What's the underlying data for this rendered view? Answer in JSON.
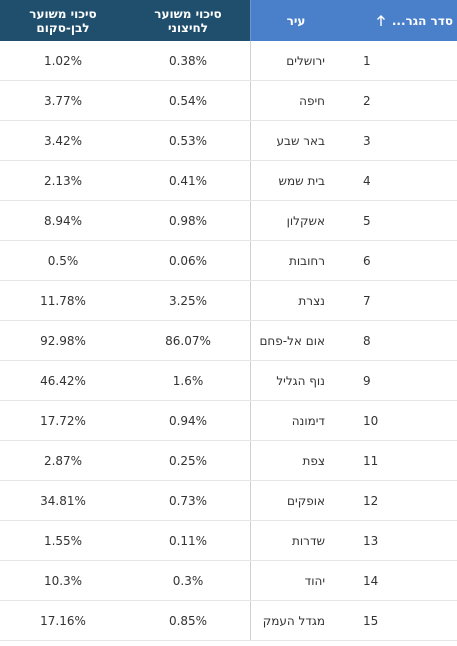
{
  "headers": {
    "rank": "סדר הגר...",
    "city": "עיר",
    "risk_hiloni": "סיכוי משוער\nלחיצוני",
    "risk_bnei_brak": "סיכוי משוער\nלבן-סקום"
  },
  "sort_icon": "arrow-up-icon",
  "rows": [
    {
      "rank": "1",
      "city": "ירושלים",
      "risk1": "0.38%",
      "risk2": "1.02%"
    },
    {
      "rank": "2",
      "city": "חיפה",
      "risk1": "0.54%",
      "risk2": "3.77%"
    },
    {
      "rank": "3",
      "city": "באר שבע",
      "risk1": "0.53%",
      "risk2": "3.42%"
    },
    {
      "rank": "4",
      "city": "בית שמש",
      "risk1": "0.41%",
      "risk2": "2.13%"
    },
    {
      "rank": "5",
      "city": "אשקלון",
      "risk1": "0.98%",
      "risk2": "8.94%"
    },
    {
      "rank": "6",
      "city": "רחובות",
      "risk1": "0.06%",
      "risk2": "0.5%"
    },
    {
      "rank": "7",
      "city": "נצרת",
      "risk1": "3.25%",
      "risk2": "11.78%"
    },
    {
      "rank": "8",
      "city": "אום אל-פחם",
      "risk1": "86.07%",
      "risk2": "92.98%"
    },
    {
      "rank": "9",
      "city": "נוף הגליל",
      "risk1": "1.6%",
      "risk2": "46.42%"
    },
    {
      "rank": "10",
      "city": "דימונה",
      "risk1": "0.94%",
      "risk2": "17.72%"
    },
    {
      "rank": "11",
      "city": "צפת",
      "risk1": "0.25%",
      "risk2": "2.87%"
    },
    {
      "rank": "12",
      "city": "אופקים",
      "risk1": "0.73%",
      "risk2": "34.81%"
    },
    {
      "rank": "13",
      "city": "שדרות",
      "risk1": "0.11%",
      "risk2": "1.55%"
    },
    {
      "rank": "14",
      "city": "יהוד",
      "risk1": "0.3%",
      "risk2": "10.3%"
    },
    {
      "rank": "15",
      "city": "מגדל העמק",
      "risk1": "0.85%",
      "risk2": "17.16%"
    }
  ],
  "colors": {
    "header_light": "#4a7fc9",
    "header_dark": "#1f4f6c",
    "row_border": "#e6e6e6",
    "text": "#333333"
  }
}
